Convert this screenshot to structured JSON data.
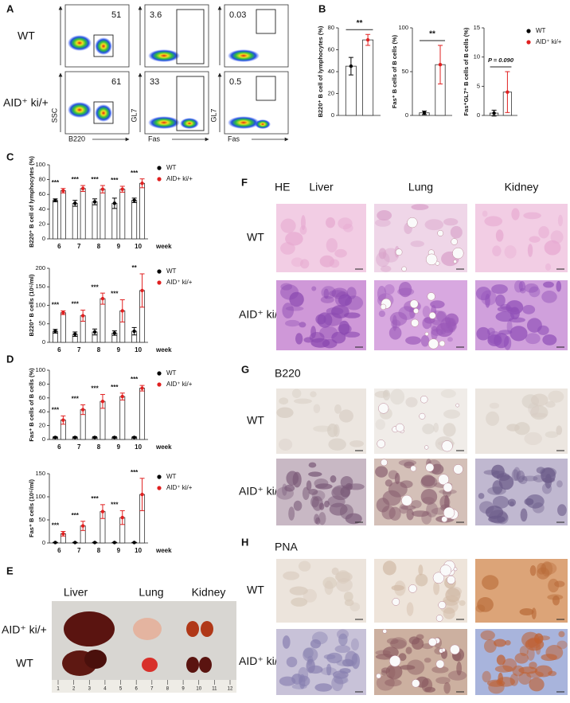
{
  "panel_letters": [
    "A",
    "B",
    "C",
    "D",
    "E",
    "F",
    "G",
    "H"
  ],
  "flow": {
    "rows": [
      {
        "label": "WT",
        "gates": [
          51,
          3.6,
          0.03
        ]
      },
      {
        "label": "AID⁺ ki/+",
        "gates": [
          61,
          33,
          0.5
        ]
      }
    ],
    "axes": [
      {
        "x": "B220",
        "y": "SSC"
      },
      {
        "x": "Fas",
        "y": "GL7"
      },
      {
        "x": "Fas",
        "y": "GL7"
      }
    ]
  },
  "chart_data": [
    {
      "type": "bar",
      "y_label": "B220⁺ B cell of lymphocytes (%)",
      "categories": [
        null
      ],
      "ylim": [
        0,
        80
      ],
      "yticks": [
        0,
        20,
        40,
        60,
        80
      ],
      "significance": "**",
      "series": [
        {
          "color": "#000000",
          "values": [
            45
          ],
          "errors": [
            8
          ]
        },
        {
          "color": "#e02020",
          "values": [
            69
          ],
          "errors": [
            5
          ]
        }
      ]
    },
    {
      "type": "bar",
      "y_label": "Fas⁺ B cells of B cells (%)",
      "categories": [
        null
      ],
      "ylim": [
        0,
        100
      ],
      "yticks": [
        0,
        50,
        100
      ],
      "significance": "**",
      "series": [
        {
          "color": "#000000",
          "values": [
            3
          ],
          "errors": [
            2
          ]
        },
        {
          "color": "#e02020",
          "values": [
            58
          ],
          "errors": [
            22
          ]
        }
      ]
    },
    {
      "type": "bar",
      "y_label": "Fas⁺GL7⁺ B cells of B cells (%)",
      "categories": [
        null
      ],
      "ylim": [
        0,
        15
      ],
      "yticks": [
        0,
        5,
        10,
        15
      ],
      "significance": "P = 0.090",
      "legend": "right",
      "series": [
        {
          "name": "WT",
          "color": "#000000",
          "values": [
            0.4
          ],
          "errors": [
            0.5
          ]
        },
        {
          "name": "AID⁺ ki/+",
          "color": "#e02020",
          "values": [
            4
          ],
          "errors": [
            3.5
          ]
        }
      ]
    },
    {
      "type": "bar",
      "y_label": "B220⁺ B cell of lymphocytes (%)",
      "x_label": "week",
      "categories": [
        "6",
        "7",
        "8",
        "9",
        "10"
      ],
      "ylim": [
        0,
        100
      ],
      "yticks": [
        0,
        20,
        40,
        60,
        80,
        100
      ],
      "significance": [
        "***",
        "***",
        "***",
        "***",
        "***"
      ],
      "legend": "right",
      "series": [
        {
          "name": "WT",
          "color": "#000000",
          "values": [
            52,
            48,
            50,
            48,
            52
          ],
          "errors": [
            2,
            4,
            4,
            7,
            3
          ]
        },
        {
          "name": "AID+ ki/+",
          "color": "#e02020",
          "values": [
            65,
            68,
            67,
            67,
            75
          ],
          "errors": [
            3,
            4,
            5,
            4,
            6
          ]
        }
      ]
    },
    {
      "type": "bar",
      "y_label": "B220⁺ B cells (10⁵/ml)",
      "x_label": "week",
      "categories": [
        "6",
        "7",
        "8",
        "9",
        "10"
      ],
      "ylim": [
        0,
        200
      ],
      "yticks": [
        0,
        50,
        100,
        150,
        200
      ],
      "significance": [
        "***",
        "***",
        "***",
        "***",
        "**"
      ],
      "legend": "right",
      "series": [
        {
          "name": "WT",
          "color": "#000000",
          "values": [
            30,
            22,
            28,
            25,
            30
          ],
          "errors": [
            5,
            6,
            8,
            6,
            10
          ]
        },
        {
          "name": "AID⁺ ki/+",
          "color": "#e02020",
          "values": [
            80,
            72,
            118,
            85,
            140
          ],
          "errors": [
            5,
            15,
            15,
            30,
            45
          ]
        }
      ]
    },
    {
      "type": "bar",
      "y_label": "Fas⁺ B cells of B cells (%)",
      "x_label": "week",
      "categories": [
        "6",
        "7",
        "8",
        "9",
        "10"
      ],
      "ylim": [
        0,
        100
      ],
      "yticks": [
        0,
        20,
        40,
        60,
        80,
        100
      ],
      "significance": [
        "***",
        "***",
        "***",
        "***",
        "***"
      ],
      "legend": "right",
      "series": [
        {
          "name": "WT",
          "color": "#000000",
          "values": [
            3,
            3,
            3,
            3,
            3
          ],
          "errors": [
            1,
            1,
            1,
            1,
            1
          ]
        },
        {
          "name": "AID⁺ ki/+",
          "color": "#e02020",
          "values": [
            28,
            43,
            55,
            62,
            74
          ],
          "errors": [
            6,
            7,
            10,
            5,
            4
          ]
        }
      ]
    },
    {
      "type": "bar",
      "y_label": "Fas⁺ B cells (10⁵/ml)",
      "x_label": "week",
      "categories": [
        "6",
        "7",
        "8",
        "9",
        "10"
      ],
      "ylim": [
        0,
        150
      ],
      "yticks": [
        0,
        50,
        100,
        150
      ],
      "significance": [
        "***",
        "***",
        "***",
        "***",
        "***"
      ],
      "legend": "right",
      "series": [
        {
          "name": "WT",
          "color": "#000000",
          "values": [
            1,
            1,
            1,
            1,
            1
          ],
          "errors": [
            0.5,
            0.5,
            0.5,
            0.5,
            0.5
          ]
        },
        {
          "name": "AID⁺ ki/+",
          "color": "#e02020",
          "values": [
            20,
            37,
            68,
            55,
            105
          ],
          "errors": [
            5,
            10,
            15,
            15,
            35
          ]
        }
      ]
    }
  ],
  "photo": {
    "columns": [
      "Liver",
      "Lung",
      "Kidney"
    ],
    "rows": [
      "AID⁺ ki/+",
      "WT"
    ],
    "ruler": [
      1,
      2,
      3,
      4,
      5,
      6,
      7,
      8,
      9,
      10,
      11,
      12
    ]
  },
  "histology": [
    {
      "stain": "HE",
      "columns": [
        "Liver",
        "Lung",
        "Kidney"
      ],
      "rows": [
        "WT",
        "AID⁺ ki/+"
      ]
    },
    {
      "stain": "B220",
      "rows": [
        "WT",
        "AID⁺ ki/+"
      ]
    },
    {
      "stain": "PNA",
      "rows": [
        "WT",
        "AID⁺ ki/+"
      ]
    }
  ]
}
